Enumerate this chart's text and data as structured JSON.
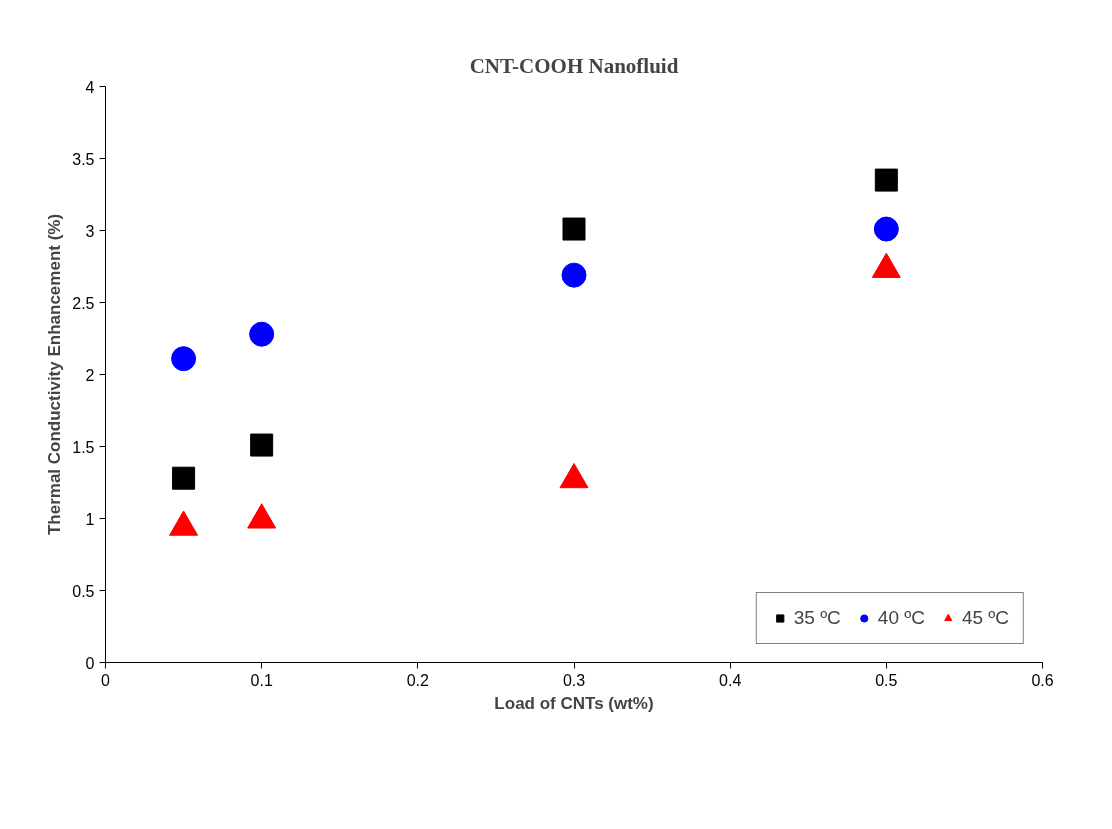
{
  "chart_data": {
    "type": "scatter",
    "title": "CNT-COOH Nanofluid",
    "xlabel": "Load of CNTs (wt%)",
    "ylabel": "Thermal Conductivity Enhancement (%)",
    "x": [
      0.05,
      0.1,
      0.3,
      0.5
    ],
    "series": [
      {
        "name": "35 ºC",
        "color": "#000000",
        "marker": "square",
        "values": [
          1.28,
          1.51,
          3.01,
          3.35
        ]
      },
      {
        "name": "40 ºC",
        "color": "#0000ff",
        "marker": "circle",
        "values": [
          2.11,
          2.28,
          2.69,
          3.01
        ]
      },
      {
        "name": "45 ºC",
        "color": "#ff0000",
        "marker": "triangle",
        "values": [
          0.94,
          0.99,
          1.27,
          2.73
        ]
      }
    ],
    "xlim": [
      0,
      0.6
    ],
    "xticks": [
      0,
      0.1,
      0.2,
      0.3,
      0.4,
      0.5,
      0.6
    ],
    "ylim": [
      0,
      4
    ],
    "yticks": [
      0,
      0.5,
      1,
      1.5,
      2,
      2.5,
      3,
      3.5,
      4
    ],
    "grid": false,
    "legend": "bottom right"
  }
}
